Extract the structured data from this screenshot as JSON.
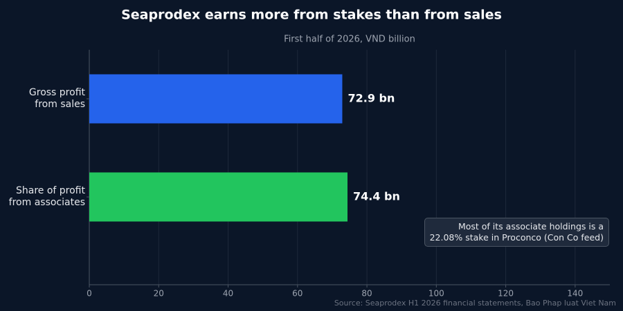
{
  "chart_data": {
    "type": "bar",
    "orientation": "horizontal",
    "title": "Seaprodex earns more from stakes than from sales",
    "subtitle": "First half of 2026, VND billion",
    "categories": [
      "Gross profit\nfrom sales",
      "Share of profit\nfrom associates"
    ],
    "values": [
      72.9,
      74.4
    ],
    "value_labels": [
      "72.9 bn",
      "74.4 bn"
    ],
    "colors": [
      "#2563eb",
      "#22c55e"
    ],
    "xlim": [
      0,
      150
    ],
    "xticks": [
      0,
      20,
      40,
      60,
      80,
      100,
      120,
      140
    ],
    "grid": true,
    "annotation": "Most of its associate holdings is a\n22.08% stake in Proconco (Con Co feed)",
    "source": "Source: Seaprodex H1 2026 financial statements, Bao Phap luat Viet Nam"
  }
}
